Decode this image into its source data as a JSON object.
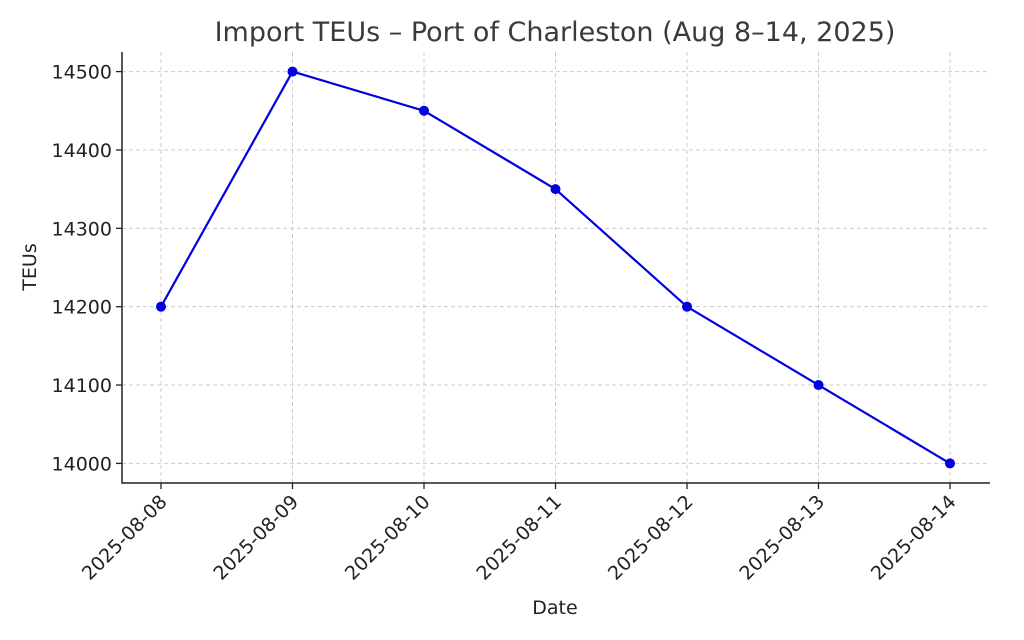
{
  "chart_data": {
    "type": "line",
    "title": "Import TEUs – Port of Charleston (Aug 8–14, 2025)",
    "xlabel": "Date",
    "ylabel": "TEUs",
    "x": [
      "2025-08-08",
      "2025-08-09",
      "2025-08-10",
      "2025-08-11",
      "2025-08-12",
      "2025-08-13",
      "2025-08-14"
    ],
    "series": [
      {
        "values": [
          14200,
          14500,
          14450,
          14350,
          14200,
          14100,
          14000
        ],
        "color": "#0000e0"
      }
    ],
    "yticks": [
      14000,
      14100,
      14200,
      14300,
      14400,
      14500
    ],
    "ylim": [
      13975,
      14525
    ],
    "grid": true,
    "marker": "circle"
  }
}
